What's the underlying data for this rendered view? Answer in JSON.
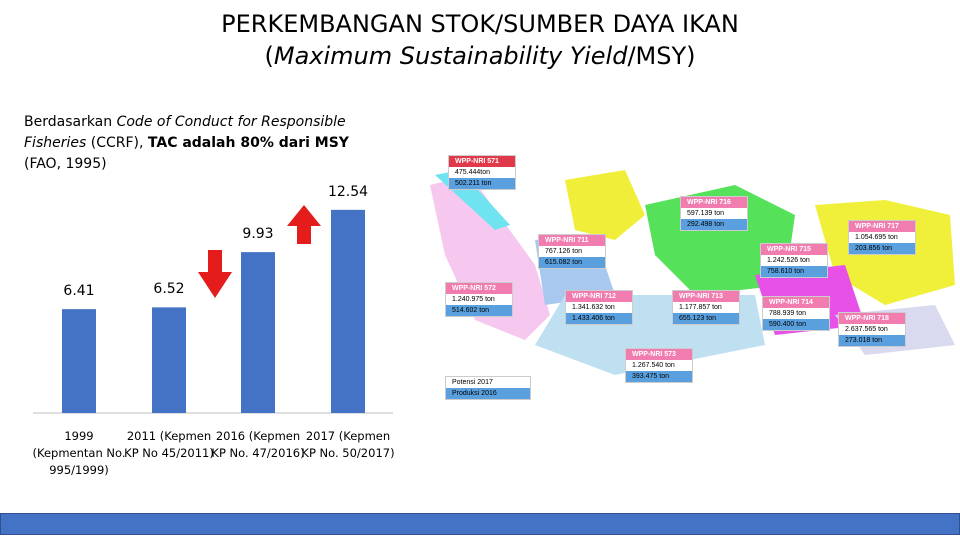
{
  "header": {
    "title": "PERKEMBANGAN STOK/SUMBER DAYA IKAN",
    "subtitle": [
      {
        "text": "(",
        "style": "normal"
      },
      {
        "text": "Maximum Sustainability Yield",
        "style": "italic"
      },
      {
        "text": "/MSY)",
        "style": "normal"
      }
    ]
  },
  "note": [
    {
      "text": "Berdasarkan ",
      "style": "normal"
    },
    {
      "text": "Code of Conduct for Responsible Fisheries",
      "style": "italic"
    },
    {
      "text": " (CCRF), ",
      "style": "normal"
    },
    {
      "text": "TAC adalah 80% dari MSY",
      "style": "bold"
    },
    {
      "text": " (FAO, 1995)",
      "style": "normal"
    }
  ],
  "chart_data": {
    "type": "bar",
    "categories": [
      "1999 (Kepmentan No. 995/1999)",
      "2011 (Kepmen KP No 45/2011)",
      "2016 (Kepmen KP No. 47/2016)",
      "2017 (Kepmen KP No. 50/2017)"
    ],
    "values": [
      6.41,
      6.52,
      9.93,
      12.54
    ],
    "color": "#4472c4"
  },
  "map": {
    "regions": [
      {
        "label": "WPP-NRI 571",
        "potensi": "475.444ton",
        "produksi": "502.211 ton"
      },
      {
        "label": "WPP-NRI 716",
        "potensi": "597.139 ton",
        "produksi": "292.498 ton"
      },
      {
        "label": "WPP-NRI 717",
        "potensi": "1.054.695 ton",
        "produksi": "203.856 ton"
      },
      {
        "label": "WPP-NRI 711",
        "potensi": "767.126 ton",
        "produksi": "615.082 ton"
      },
      {
        "label": "WPP-NRI 715",
        "potensi": "1.242.526 ton",
        "produksi": "758.610 ton"
      },
      {
        "label": "WPP-NRI 572",
        "potensi": "1.240.975 ton",
        "produksi": "514.602 ton"
      },
      {
        "label": "WPP-NRI 712",
        "potensi": "1.341.632 ton",
        "produksi": "1.433.406 ton"
      },
      {
        "label": "WPP-NRI 713",
        "potensi": "1.177.857 ton",
        "produksi": "655.123 ton"
      },
      {
        "label": "WPP-NRI 714",
        "potensi": "788.939 ton",
        "produksi": "590.400 ton"
      },
      {
        "label": "WPP-NRI 718",
        "potensi": "2.637.565 ton",
        "produksi": "273.018 ton"
      },
      {
        "label": "WPP-NRI 573",
        "potensi": "1.267.540 ton",
        "produksi": "393.475 ton"
      }
    ],
    "legend": [
      "Potensi 2017",
      "Produksi 2016"
    ]
  }
}
